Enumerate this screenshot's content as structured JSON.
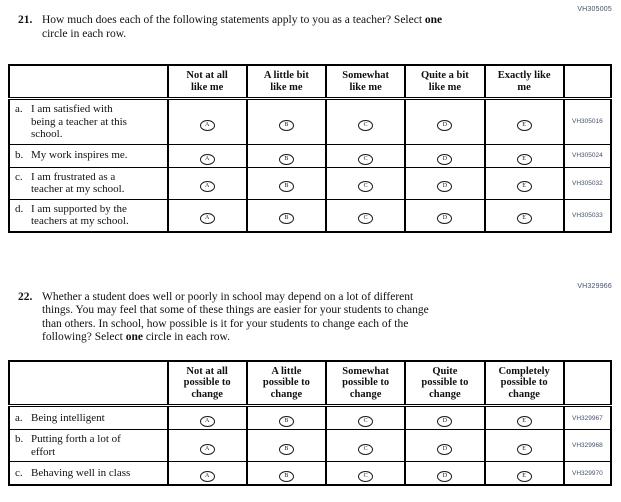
{
  "colors": {
    "border": "#000000",
    "code_text": "#44506e",
    "text": "#111111",
    "background": "#ffffff"
  },
  "questions": [
    {
      "number": "21.",
      "form_code": "VH305005",
      "prompt_lines": [
        [
          {
            "t": "How much does each of the following statements apply to you as a teacher? Select "
          },
          {
            "t": "one",
            "bold": true
          }
        ],
        [
          {
            "t": "circle in each row."
          }
        ]
      ],
      "option_headers": [
        [
          "Not at all",
          "like me"
        ],
        [
          "A little bit",
          "like me"
        ],
        [
          "Somewhat",
          "like me"
        ],
        [
          "Quite a bit",
          "like me"
        ],
        [
          "Exactly like",
          "me"
        ]
      ],
      "option_letters": [
        "A",
        "B",
        "C",
        "D",
        "E"
      ],
      "rows": [
        {
          "label": "a.",
          "statement_lines": [
            "I am satisfied with",
            "being a teacher at this",
            "school."
          ],
          "code": "VH305016"
        },
        {
          "label": "b.",
          "statement_lines": [
            "My work inspires me."
          ],
          "code": "VH305024"
        },
        {
          "label": "c.",
          "statement_lines": [
            "I am frustrated as a",
            "teacher at my school."
          ],
          "code": "VH305032"
        },
        {
          "label": "d.",
          "statement_lines": [
            "I am supported by the",
            "teachers at my school."
          ],
          "code": "VH305033"
        }
      ]
    },
    {
      "number": "22.",
      "form_code": "VH329966",
      "prompt_lines": [
        [
          {
            "t": "Whether a student does well or poorly in school may depend on a lot of different"
          }
        ],
        [
          {
            "t": "things. You may feel that some of these things are easier for your students to change"
          }
        ],
        [
          {
            "t": "than others. In school, how possible is it for your students to change each of the"
          }
        ],
        [
          {
            "t": "following? Select "
          },
          {
            "t": "one",
            "bold": true
          },
          {
            "t": " circle in each row."
          }
        ]
      ],
      "option_headers": [
        [
          "Not at all",
          "possible to",
          "change"
        ],
        [
          "A little",
          "possible to",
          "change"
        ],
        [
          "Somewhat",
          "possible to",
          "change"
        ],
        [
          "Quite",
          "possible to",
          "change"
        ],
        [
          "Completely",
          "possible to",
          "change"
        ]
      ],
      "option_letters": [
        "A",
        "B",
        "C",
        "D",
        "E"
      ],
      "rows": [
        {
          "label": "a.",
          "statement_lines": [
            "Being intelligent"
          ],
          "code": "VH329967"
        },
        {
          "label": "b.",
          "statement_lines": [
            "Putting forth a lot of",
            "effort"
          ],
          "code": "VH329968"
        },
        {
          "label": "c.",
          "statement_lines": [
            "Behaving well in class"
          ],
          "code": "VH329970"
        }
      ]
    }
  ]
}
